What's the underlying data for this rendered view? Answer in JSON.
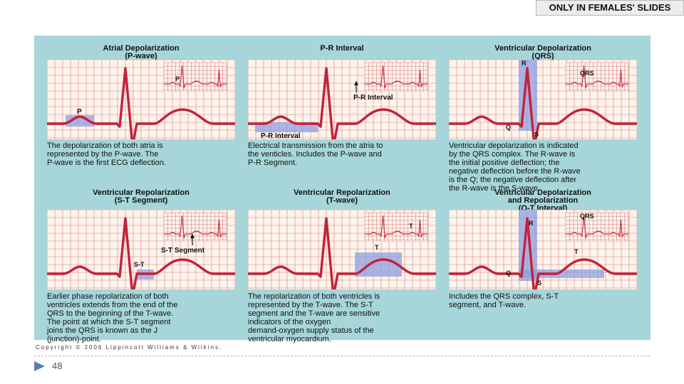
{
  "badge": "ONLY IN FEMALES' SLIDES",
  "panels": [
    {
      "title": [
        "Atrial Depolarization",
        "(P-wave)"
      ],
      "labels": [
        "P",
        "P"
      ],
      "desc": [
        "The depolarization of both atria is",
        "represented by the P-wave. The",
        "P-wave is the first ECG deflection."
      ]
    },
    {
      "title": [
        "P-R Interval",
        ""
      ],
      "labels": [
        "P-R Interval",
        "P-R Interval"
      ],
      "desc": [
        "Electrical transmission from the atria to",
        "the venticles. Includes the P-wave and",
        "P-R Segment."
      ]
    },
    {
      "title": [
        "Ventricular Depolarization",
        "(QRS)"
      ],
      "labels": [
        "QRS",
        "R",
        "Q",
        "S"
      ],
      "desc": [
        "Ventricular depolarization is indicated",
        "by the QRS complex. The R-wave is",
        "the initial positive deflection; the",
        "negative deflection before the R-wave",
        "is the Q; the negative deflection after",
        "the R-wave is the S-wave."
      ]
    },
    {
      "title": [
        "Ventricular Repolarization",
        "(S-T Segment)"
      ],
      "labels": [
        "S-T Segment",
        "S-T"
      ],
      "desc": [
        "Earlier phase repolarization of both",
        "ventricles extends from the end of the",
        "QRS to the beginning of the T-wave.",
        "The point at which the S-T segment",
        "joins the QRS is known as the J",
        "(junction)-point."
      ]
    },
    {
      "title": [
        "Ventricular Repolarization",
        "(T-wave)"
      ],
      "labels": [
        "T",
        "T"
      ],
      "desc": [
        "The repolarization of both ventricles is",
        "represented by the T-wave. The S-T",
        "segment and the T-wave are sensitive",
        "indicators of the oxygen",
        "demand-oxygen supply status of the",
        "ventricular myocardium."
      ]
    },
    {
      "title": [
        "Ventricular Depolarization",
        "and Repolarization"
      ],
      "title3": "(Q-T Interval)",
      "labels": [
        "QRS",
        "R",
        "T",
        "Q",
        "S"
      ],
      "desc": [
        "Includes the QRS complex, S-T",
        "segment, and T-wave."
      ]
    }
  ],
  "copyright": "Copyright © 2006 Lippincott Williams & Wilkins.",
  "page_number": "48",
  "colors": {
    "figure_bg": "#a6d6d9",
    "grid_bg": "#fdf4ec",
    "grid_line": "#c44a4a",
    "ecg_trace": "#c2223a",
    "highlight": "#8e9fe0"
  }
}
